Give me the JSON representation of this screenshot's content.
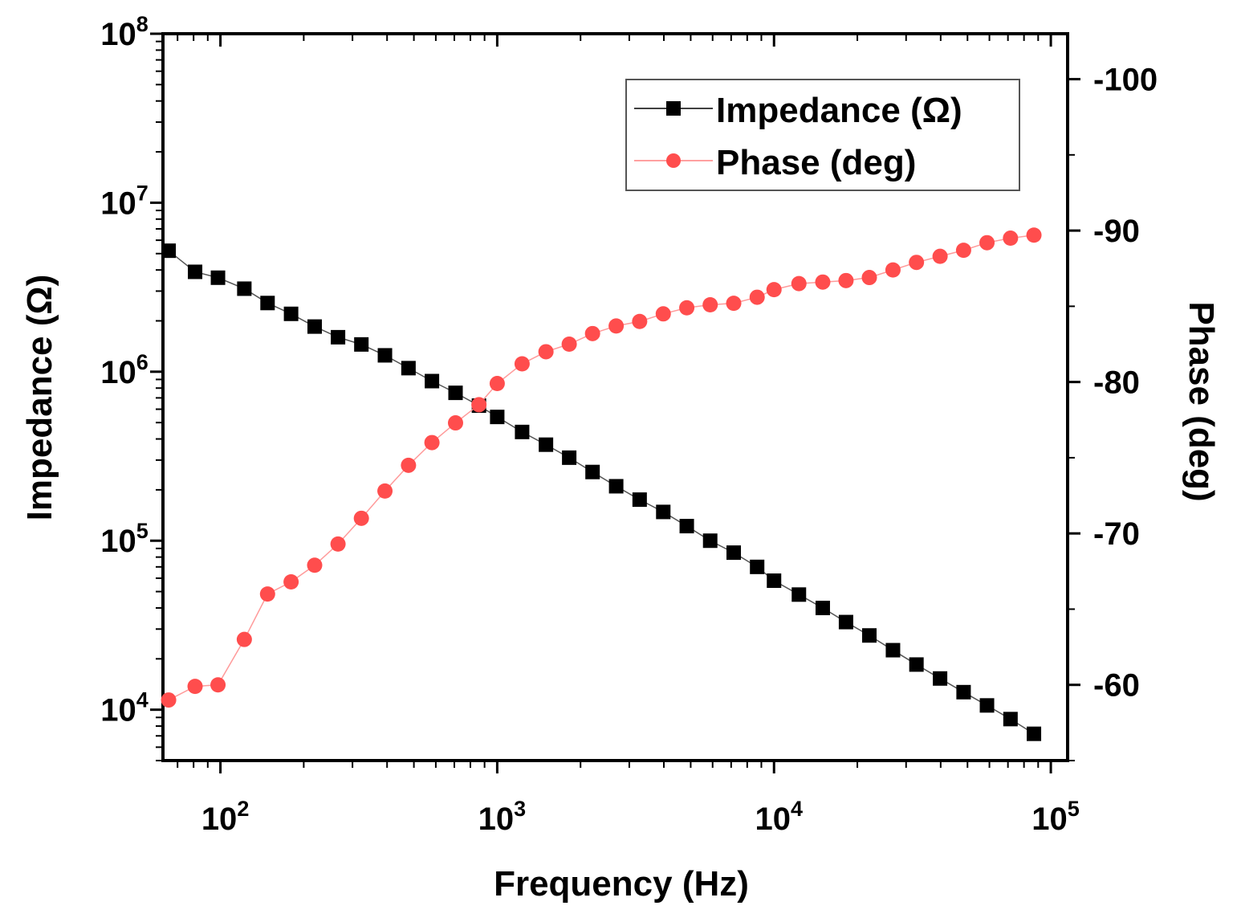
{
  "chart_data": {
    "type": "line",
    "xlabel": "Frequency (Hz)",
    "ylabel_left": "Impedance (Ω)",
    "ylabel_right": "Phase (deg)",
    "x_scale": "log",
    "y_left_scale": "log",
    "xlim": [
      62,
      115000
    ],
    "ylim_left": [
      5000,
      100000000
    ],
    "ylim_right": [
      -55,
      -103
    ],
    "x_ticks": [
      {
        "base": "10",
        "exp": "2",
        "value": 100
      },
      {
        "base": "10",
        "exp": "3",
        "value": 1000
      },
      {
        "base": "10",
        "exp": "4",
        "value": 10000
      },
      {
        "base": "10",
        "exp": "5",
        "value": 100000
      }
    ],
    "y_left_ticks": [
      {
        "base": "10",
        "exp": "4",
        "value": 10000
      },
      {
        "base": "10",
        "exp": "5",
        "value": 100000
      },
      {
        "base": "10",
        "exp": "6",
        "value": 1000000
      },
      {
        "base": "10",
        "exp": "7",
        "value": 10000000
      },
      {
        "base": "10",
        "exp": "8",
        "value": 100000000
      }
    ],
    "y_right_ticks": [
      -60,
      -70,
      -80,
      -90,
      -100
    ],
    "grid": false,
    "legend_position": "top-right",
    "x": [
      65,
      81,
      98,
      122,
      148,
      180,
      219,
      266,
      323,
      393,
      478,
      581,
      707,
      859,
      1000,
      1230,
      1500,
      1820,
      2210,
      2690,
      3270,
      3980,
      4840,
      5880,
      7150,
      8690,
      10000,
      12300,
      15000,
      18200,
      22100,
      26900,
      32700,
      39800,
      48400,
      58800,
      71500,
      86900
    ],
    "series": [
      {
        "name": "Impedance (Ω)",
        "axis": "left",
        "color": "#000000",
        "marker": "square",
        "values": [
          5200000,
          3900000,
          3600000,
          3100000,
          2550000,
          2200000,
          1850000,
          1600000,
          1450000,
          1250000,
          1050000,
          880000,
          750000,
          630000,
          540000,
          440000,
          370000,
          310000,
          255000,
          210000,
          175000,
          148000,
          122000,
          100000,
          85000,
          70000,
          58000,
          48000,
          40000,
          33000,
          27500,
          22500,
          18500,
          15300,
          12700,
          10600,
          8800,
          7200
        ]
      },
      {
        "name": "Phase (deg)",
        "axis": "right",
        "color": "#ff4d4d",
        "marker": "circle",
        "values": [
          -59.0,
          -59.9,
          -60.0,
          -63.0,
          -66.0,
          -66.8,
          -67.9,
          -69.3,
          -71.0,
          -72.8,
          -74.5,
          -76.0,
          -77.3,
          -78.5,
          -79.9,
          -81.2,
          -82.0,
          -82.5,
          -83.2,
          -83.7,
          -84.0,
          -84.5,
          -84.9,
          -85.1,
          -85.2,
          -85.6,
          -86.1,
          -86.5,
          -86.6,
          -86.7,
          -86.9,
          -87.4,
          -87.9,
          -88.3,
          -88.7,
          -89.2,
          -89.5,
          -89.7
        ]
      }
    ]
  }
}
